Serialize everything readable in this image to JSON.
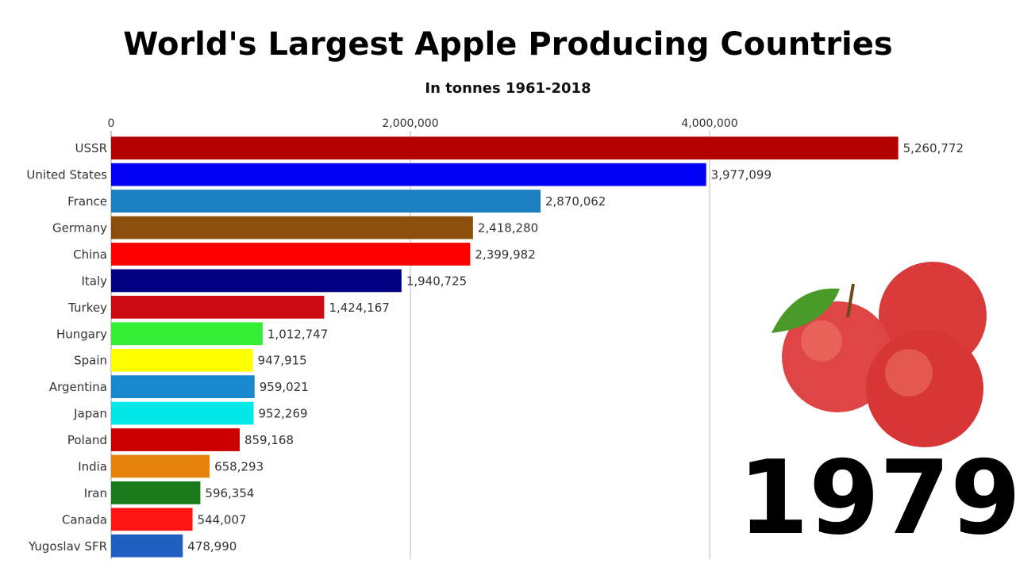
{
  "chart_data": {
    "type": "bar",
    "orientation": "horizontal",
    "title": "World's Largest Apple Producing Countries",
    "subtitle": "In tonnes 1961-2018",
    "annotation": "1979",
    "categories": [
      "USSR",
      "United States",
      "France",
      "Germany",
      "China",
      "Italy",
      "Turkey",
      "Hungary",
      "Spain",
      "Argentina",
      "Japan",
      "Poland",
      "India",
      "Iran",
      "Canada",
      "Yugoslav SFR"
    ],
    "values": [
      5260772,
      3977099,
      2870062,
      2418280,
      2399982,
      1940725,
      1424167,
      1012747,
      947915,
      959021,
      952269,
      859168,
      658293,
      596354,
      544007,
      478990
    ],
    "value_labels": [
      "5,260,772",
      "3,977,099",
      "2,870,062",
      "2,418,280",
      "2,399,982",
      "1,940,725",
      "1,424,167",
      "1,012,747",
      "947,915",
      "959,021",
      "952,269",
      "859,168",
      "658,293",
      "596,354",
      "544,007",
      "478,990"
    ],
    "colors": [
      "#b30000",
      "#0000f5",
      "#1a7fbf",
      "#8b4f0b",
      "#ff0000",
      "#000080",
      "#cc0a14",
      "#33ee33",
      "#ffff00",
      "#1a88cf",
      "#00e8e8",
      "#cc0000",
      "#e5820c",
      "#1a7a1a",
      "#ff1414",
      "#1e5fc0"
    ],
    "xlim": [
      0,
      5500000
    ],
    "xticks": [
      0,
      {
        "value": 2000000,
        "label": "2,000,000"
      },
      {
        "value": 4000000,
        "label": "4,000,000"
      }
    ],
    "grid": true
  }
}
